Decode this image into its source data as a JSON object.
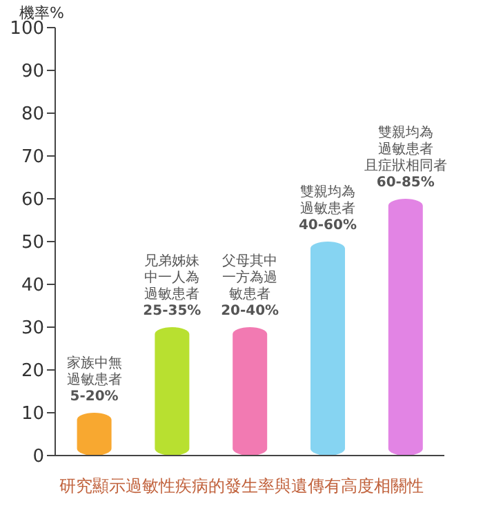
{
  "chart_data": {
    "type": "bar",
    "ylabel": "機率%",
    "categories": [
      null,
      null,
      null,
      null,
      null
    ],
    "values": [
      10,
      30,
      30,
      50,
      60
    ],
    "colors": [
      "#f8a830",
      "#b8e030",
      "#f27ab2",
      "#86d4f2",
      "#e284e4"
    ],
    "ylim": [
      0,
      100
    ],
    "yticks": [
      0,
      10,
      20,
      30,
      40,
      50,
      60,
      70,
      80,
      90,
      100
    ],
    "annotations": [
      "家族中無過敏患者5-20%",
      "兄弟姊妹中一人為過敏患者25-35%",
      "父母其中一方為過敏患者20-40%",
      "雙親均為過敏患者40-60%",
      "雙親均為過敏患者且症狀相同者60-85%",
      "研究顯示過敏性疾病的發生率與遺傳有高度相關性"
    ]
  }
}
